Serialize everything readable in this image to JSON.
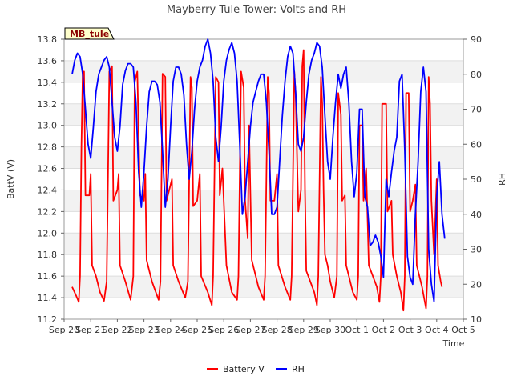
{
  "chart_data": {
    "type": "line",
    "title": "Mayberry Tule Tower: Volts and RH",
    "badge": "MB_tule",
    "xlabel": "Time",
    "ylabel_left": "BattV (V)",
    "ylabel_right": "RH",
    "x_ticks": [
      "Sep 20",
      "Sep 21",
      "Sep 22",
      "Sep 23",
      "Sep 24",
      "Sep 25",
      "Sep 26",
      "Sep 27",
      "Sep 28",
      "Sep 29",
      "Sep 30",
      "Oct 1",
      "Oct 2",
      "Oct 3",
      "Oct 4",
      "Oct 5"
    ],
    "x_range_days": [
      0,
      15
    ],
    "ylim_left": [
      11.2,
      13.8
    ],
    "yticks_left": [
      "11.2",
      "11.4",
      "11.6",
      "11.8",
      "12.0",
      "12.2",
      "12.4",
      "12.6",
      "12.8",
      "13.0",
      "13.2",
      "13.4",
      "13.6",
      "13.8"
    ],
    "ylim_right": [
      10,
      90
    ],
    "yticks_right": [
      "10",
      "20",
      "30",
      "40",
      "50",
      "60",
      "70",
      "80",
      "90"
    ],
    "grid": "horizontal alternating bands",
    "legend_position": "bottom-center",
    "series": [
      {
        "name": "Battery V",
        "color": "#ff0000",
        "axis": "left",
        "points": [
          [
            0.3,
            11.5
          ],
          [
            0.45,
            11.42
          ],
          [
            0.55,
            11.36
          ],
          [
            0.6,
            11.6
          ],
          [
            0.65,
            12.8
          ],
          [
            0.7,
            13.5
          ],
          [
            0.75,
            13.5
          ],
          [
            0.8,
            12.35
          ],
          [
            0.95,
            12.35
          ],
          [
            1.0,
            12.55
          ],
          [
            1.05,
            11.7
          ],
          [
            1.2,
            11.6
          ],
          [
            1.35,
            11.45
          ],
          [
            1.5,
            11.37
          ],
          [
            1.6,
            11.55
          ],
          [
            1.7,
            13.5
          ],
          [
            1.8,
            13.55
          ],
          [
            1.85,
            12.3
          ],
          [
            2.0,
            12.4
          ],
          [
            2.05,
            12.55
          ],
          [
            2.1,
            11.7
          ],
          [
            2.3,
            11.55
          ],
          [
            2.5,
            11.38
          ],
          [
            2.6,
            11.6
          ],
          [
            2.65,
            13.4
          ],
          [
            2.75,
            13.5
          ],
          [
            2.85,
            12.35
          ],
          [
            3.0,
            12.3
          ],
          [
            3.05,
            12.55
          ],
          [
            3.1,
            11.75
          ],
          [
            3.3,
            11.55
          ],
          [
            3.55,
            11.38
          ],
          [
            3.62,
            11.55
          ],
          [
            3.7,
            13.48
          ],
          [
            3.8,
            13.45
          ],
          [
            3.85,
            12.3
          ],
          [
            3.95,
            12.4
          ],
          [
            4.05,
            12.5
          ],
          [
            4.1,
            11.7
          ],
          [
            4.3,
            11.55
          ],
          [
            4.55,
            11.4
          ],
          [
            4.65,
            11.55
          ],
          [
            4.75,
            13.45
          ],
          [
            4.8,
            13.35
          ],
          [
            4.85,
            12.25
          ],
          [
            5.0,
            12.3
          ],
          [
            5.1,
            12.55
          ],
          [
            5.15,
            11.6
          ],
          [
            5.4,
            11.45
          ],
          [
            5.55,
            11.33
          ],
          [
            5.6,
            11.6
          ],
          [
            5.7,
            13.45
          ],
          [
            5.8,
            13.4
          ],
          [
            5.85,
            12.35
          ],
          [
            5.95,
            12.6
          ],
          [
            6.1,
            11.7
          ],
          [
            6.3,
            11.45
          ],
          [
            6.5,
            11.38
          ],
          [
            6.55,
            11.6
          ],
          [
            6.65,
            13.5
          ],
          [
            6.75,
            13.35
          ],
          [
            6.8,
            12.3
          ],
          [
            6.9,
            11.95
          ],
          [
            6.95,
            13.0
          ],
          [
            7.05,
            11.75
          ],
          [
            7.3,
            11.5
          ],
          [
            7.5,
            11.38
          ],
          [
            7.55,
            11.6
          ],
          [
            7.65,
            13.45
          ],
          [
            7.7,
            13.3
          ],
          [
            7.75,
            12.3
          ],
          [
            7.9,
            12.3
          ],
          [
            8.0,
            12.55
          ],
          [
            8.05,
            11.7
          ],
          [
            8.3,
            11.5
          ],
          [
            8.5,
            11.38
          ],
          [
            8.55,
            11.6
          ],
          [
            8.65,
            13.5
          ],
          [
            8.7,
            13.3
          ],
          [
            8.8,
            12.2
          ],
          [
            8.9,
            12.4
          ],
          [
            8.95,
            13.55
          ],
          [
            9.0,
            13.7
          ],
          [
            9.05,
            12.4
          ],
          [
            9.1,
            11.65
          ],
          [
            9.4,
            11.45
          ],
          [
            9.5,
            11.33
          ],
          [
            9.55,
            11.6
          ],
          [
            9.65,
            13.45
          ],
          [
            9.7,
            13.2
          ],
          [
            9.75,
            12.4
          ],
          [
            9.8,
            11.8
          ],
          [
            9.9,
            11.7
          ],
          [
            10.0,
            11.55
          ],
          [
            10.15,
            11.4
          ],
          [
            10.25,
            11.6
          ],
          [
            10.3,
            13.3
          ],
          [
            10.4,
            13.1
          ],
          [
            10.45,
            12.3
          ],
          [
            10.55,
            12.35
          ],
          [
            10.6,
            11.7
          ],
          [
            10.85,
            11.45
          ],
          [
            11.0,
            11.38
          ],
          [
            11.05,
            11.6
          ],
          [
            11.1,
            13.0
          ],
          [
            11.2,
            13.0
          ],
          [
            11.25,
            12.3
          ],
          [
            11.35,
            12.6
          ],
          [
            11.45,
            11.7
          ],
          [
            11.75,
            11.5
          ],
          [
            11.85,
            11.36
          ],
          [
            11.9,
            11.6
          ],
          [
            11.95,
            13.2
          ],
          [
            12.1,
            13.2
          ],
          [
            12.15,
            12.2
          ],
          [
            12.3,
            12.3
          ],
          [
            12.35,
            11.8
          ],
          [
            12.5,
            11.6
          ],
          [
            12.65,
            11.45
          ],
          [
            12.75,
            11.28
          ],
          [
            12.8,
            11.6
          ],
          [
            12.85,
            13.3
          ],
          [
            12.95,
            13.3
          ],
          [
            13.0,
            12.2
          ],
          [
            13.1,
            12.3
          ],
          [
            13.2,
            12.45
          ],
          [
            13.25,
            11.7
          ],
          [
            13.45,
            11.5
          ],
          [
            13.6,
            11.3
          ],
          [
            13.65,
            11.6
          ],
          [
            13.7,
            13.45
          ],
          [
            13.75,
            13.2
          ],
          [
            13.8,
            12.3
          ],
          [
            13.9,
            11.8
          ],
          [
            14.0,
            12.5
          ],
          [
            14.05,
            11.7
          ],
          [
            14.15,
            11.55
          ],
          [
            14.2,
            11.5
          ]
        ]
      },
      {
        "name": "RH",
        "color": "#0000ff",
        "axis": "right",
        "points": [
          [
            0.3,
            80
          ],
          [
            0.4,
            84
          ],
          [
            0.5,
            86
          ],
          [
            0.6,
            85
          ],
          [
            0.7,
            80
          ],
          [
            0.8,
            70
          ],
          [
            0.9,
            60
          ],
          [
            1.0,
            56
          ],
          [
            1.1,
            65
          ],
          [
            1.2,
            75
          ],
          [
            1.3,
            80
          ],
          [
            1.4,
            82
          ],
          [
            1.5,
            84
          ],
          [
            1.6,
            85
          ],
          [
            1.7,
            82
          ],
          [
            1.8,
            72
          ],
          [
            1.9,
            62
          ],
          [
            2.0,
            58
          ],
          [
            2.1,
            65
          ],
          [
            2.2,
            77
          ],
          [
            2.3,
            81
          ],
          [
            2.4,
            83
          ],
          [
            2.5,
            83
          ],
          [
            2.6,
            82
          ],
          [
            2.7,
            72
          ],
          [
            2.8,
            52
          ],
          [
            2.9,
            42
          ],
          [
            3.0,
            52
          ],
          [
            3.1,
            65
          ],
          [
            3.2,
            75
          ],
          [
            3.3,
            78
          ],
          [
            3.4,
            78
          ],
          [
            3.5,
            77
          ],
          [
            3.6,
            72
          ],
          [
            3.7,
            58
          ],
          [
            3.8,
            42
          ],
          [
            3.9,
            50
          ],
          [
            4.0,
            65
          ],
          [
            4.1,
            78
          ],
          [
            4.2,
            82
          ],
          [
            4.3,
            82
          ],
          [
            4.4,
            80
          ],
          [
            4.5,
            74
          ],
          [
            4.6,
            60
          ],
          [
            4.7,
            50
          ],
          [
            4.8,
            58
          ],
          [
            4.9,
            70
          ],
          [
            5.0,
            78
          ],
          [
            5.1,
            82
          ],
          [
            5.2,
            84
          ],
          [
            5.3,
            88
          ],
          [
            5.4,
            90
          ],
          [
            5.5,
            86
          ],
          [
            5.6,
            78
          ],
          [
            5.7,
            62
          ],
          [
            5.8,
            55
          ],
          [
            5.9,
            65
          ],
          [
            6.0,
            78
          ],
          [
            6.1,
            84
          ],
          [
            6.2,
            87
          ],
          [
            6.3,
            89
          ],
          [
            6.4,
            86
          ],
          [
            6.5,
            78
          ],
          [
            6.6,
            60
          ],
          [
            6.7,
            40
          ],
          [
            6.8,
            45
          ],
          [
            6.9,
            55
          ],
          [
            7.0,
            65
          ],
          [
            7.1,
            72
          ],
          [
            7.2,
            75
          ],
          [
            7.3,
            78
          ],
          [
            7.4,
            80
          ],
          [
            7.5,
            80
          ],
          [
            7.6,
            72
          ],
          [
            7.7,
            58
          ],
          [
            7.8,
            40
          ],
          [
            7.9,
            40
          ],
          [
            8.0,
            42
          ],
          [
            8.1,
            55
          ],
          [
            8.2,
            68
          ],
          [
            8.3,
            78
          ],
          [
            8.4,
            85
          ],
          [
            8.5,
            88
          ],
          [
            8.6,
            86
          ],
          [
            8.7,
            75
          ],
          [
            8.8,
            60
          ],
          [
            8.9,
            58
          ],
          [
            9.0,
            62
          ],
          [
            9.1,
            72
          ],
          [
            9.2,
            80
          ],
          [
            9.3,
            84
          ],
          [
            9.4,
            86
          ],
          [
            9.5,
            89
          ],
          [
            9.6,
            88
          ],
          [
            9.7,
            82
          ],
          [
            9.8,
            68
          ],
          [
            9.9,
            55
          ],
          [
            10.0,
            50
          ],
          [
            10.1,
            62
          ],
          [
            10.2,
            72
          ],
          [
            10.3,
            80
          ],
          [
            10.4,
            76
          ],
          [
            10.5,
            80
          ],
          [
            10.6,
            82
          ],
          [
            10.7,
            72
          ],
          [
            10.8,
            55
          ],
          [
            10.9,
            45
          ],
          [
            11.0,
            52
          ],
          [
            11.1,
            70
          ],
          [
            11.2,
            70
          ],
          [
            11.3,
            45
          ],
          [
            11.4,
            42
          ],
          [
            11.5,
            31
          ],
          [
            11.6,
            32
          ],
          [
            11.7,
            34
          ],
          [
            11.8,
            32
          ],
          [
            11.9,
            28
          ],
          [
            12.0,
            22
          ],
          [
            12.1,
            50
          ],
          [
            12.2,
            45
          ],
          [
            12.3,
            52
          ],
          [
            12.4,
            58
          ],
          [
            12.5,
            62
          ],
          [
            12.6,
            78
          ],
          [
            12.7,
            80
          ],
          [
            12.8,
            58
          ],
          [
            12.9,
            28
          ],
          [
            13.0,
            22
          ],
          [
            13.1,
            20
          ],
          [
            13.2,
            40
          ],
          [
            13.3,
            55
          ],
          [
            13.4,
            75
          ],
          [
            13.5,
            82
          ],
          [
            13.6,
            75
          ],
          [
            13.7,
            30
          ],
          [
            13.8,
            20
          ],
          [
            13.9,
            15
          ],
          [
            14.0,
            45
          ],
          [
            14.1,
            55
          ],
          [
            14.2,
            40
          ],
          [
            14.3,
            33
          ]
        ]
      }
    ]
  }
}
